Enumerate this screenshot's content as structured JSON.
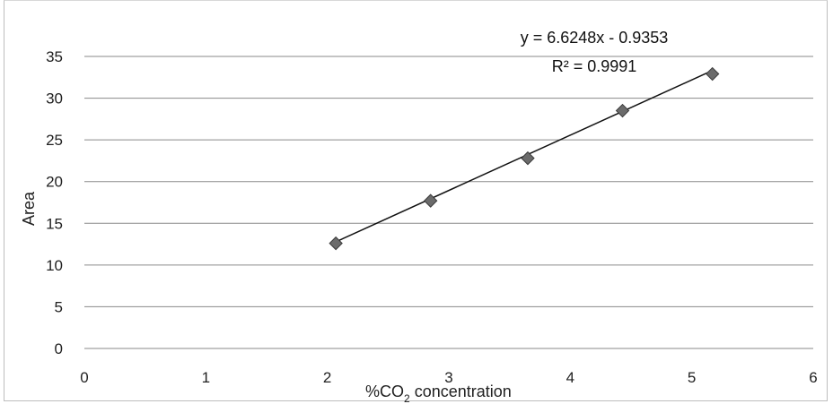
{
  "chart_data": {
    "type": "scatter",
    "xlabel_prefix": "%CO",
    "xlabel_subscript": "2",
    "xlabel_suffix": " concentration",
    "ylabel": "Area",
    "xlim": [
      0,
      6
    ],
    "ylim": [
      0,
      35
    ],
    "x_ticks": [
      "0",
      "1",
      "2",
      "3",
      "4",
      "5",
      "6"
    ],
    "y_ticks": [
      "0",
      "5",
      "10",
      "15",
      "20",
      "25",
      "30",
      "35"
    ],
    "grid": "horizontal",
    "legend": "none",
    "marker": "diamond",
    "marker_color": "#6b6b6b",
    "line_color": "#111111",
    "series": [
      {
        "x": [
          2.07,
          2.85,
          3.65,
          4.43,
          5.17
        ],
        "y": [
          12.6,
          17.7,
          22.8,
          28.5,
          32.9
        ]
      }
    ],
    "trendline": {
      "type": "linear",
      "slope": 6.6248,
      "intercept": -0.9353,
      "x_range": [
        2.07,
        5.17
      ]
    },
    "annotations": {
      "equation": "y = 6.6248x - 0.9353",
      "r_squared": "R² = 0.9991"
    }
  }
}
